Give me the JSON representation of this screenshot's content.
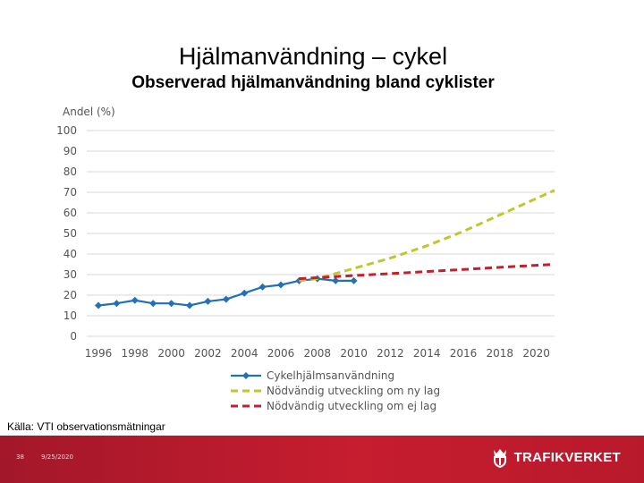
{
  "slide": {
    "title": "Hjälmanvändning – cykel",
    "subtitle": "Observerad hjälmanvändning bland cyklister",
    "source": "Källa: VTI observationsmätningar"
  },
  "footer": {
    "page_number": "38",
    "date": "9/25/2020",
    "brand": "TRAFIKVERKET",
    "brand_icon": "crown-shield-icon"
  },
  "chart_data": {
    "type": "line",
    "ylabel": "Andel (%)",
    "xlabel": "",
    "ylim": [
      0,
      100
    ],
    "xlim": [
      1996,
      2021
    ],
    "yticks": [
      0,
      10,
      20,
      30,
      40,
      50,
      60,
      70,
      80,
      90,
      100
    ],
    "xticks": [
      1996,
      1998,
      2000,
      2002,
      2004,
      2006,
      2008,
      2010,
      2012,
      2014,
      2016,
      2018,
      2020
    ],
    "grid": true,
    "legend_position": "bottom",
    "series": [
      {
        "name": "Cykelhjälmsanvändning",
        "color": "#2172b5",
        "style": "solid-markers",
        "x": [
          1996,
          1997,
          1998,
          1999,
          2000,
          2001,
          2002,
          2003,
          2004,
          2005,
          2006,
          2007,
          2008,
          2009,
          2010
        ],
        "y": [
          15,
          16,
          17.5,
          16,
          16,
          15,
          17,
          18,
          21,
          24,
          25,
          27,
          28,
          27,
          27
        ]
      },
      {
        "name": "Nödvändig utveckling om ny lag",
        "color": "#bfc62e",
        "style": "dashed",
        "x": [
          2007,
          2008,
          2010,
          2012,
          2014,
          2016,
          2018,
          2020,
          2021
        ],
        "y": [
          27,
          28,
          33,
          38,
          44,
          51,
          59,
          67,
          71
        ]
      },
      {
        "name": "Nödvändig utveckling om ej lag",
        "color": "#c2202f",
        "style": "dashed",
        "x": [
          2007,
          2008,
          2010,
          2012,
          2014,
          2016,
          2018,
          2020,
          2021
        ],
        "y": [
          28,
          28.5,
          29.5,
          30.5,
          31.5,
          32.5,
          33.5,
          34.5,
          35
        ]
      }
    ]
  }
}
